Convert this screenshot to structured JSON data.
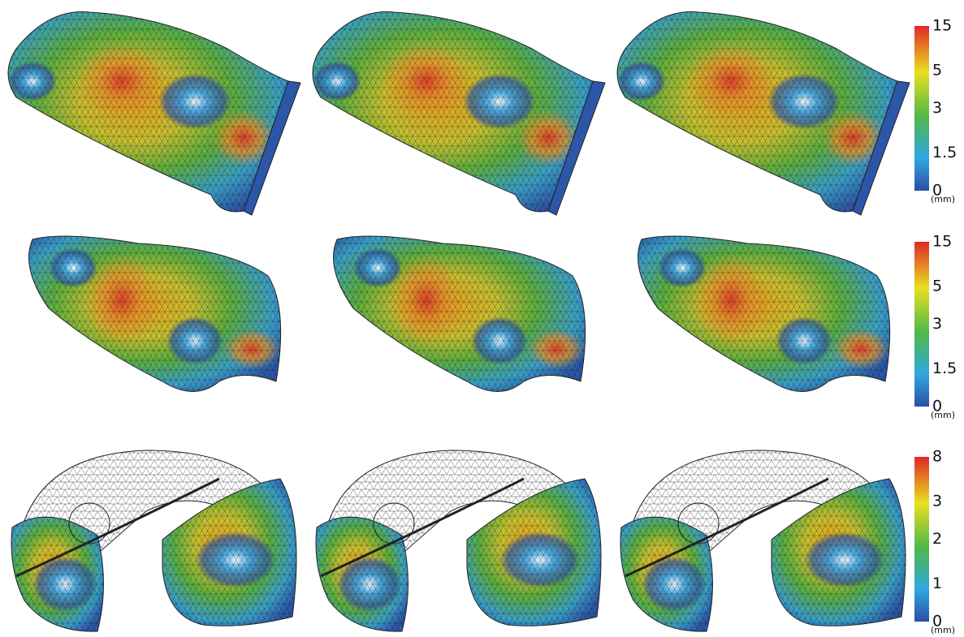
{
  "colorbars": [
    {
      "ticks": [
        "15",
        "5",
        "3",
        "1.5",
        "0"
      ],
      "unit": "(mm)"
    },
    {
      "ticks": [
        "15",
        "5",
        "3",
        "1.5",
        "0"
      ],
      "unit": "(mm)"
    },
    {
      "ticks": [
        "8",
        "3",
        "2",
        "1",
        "0"
      ],
      "unit": "(mm)"
    }
  ]
}
